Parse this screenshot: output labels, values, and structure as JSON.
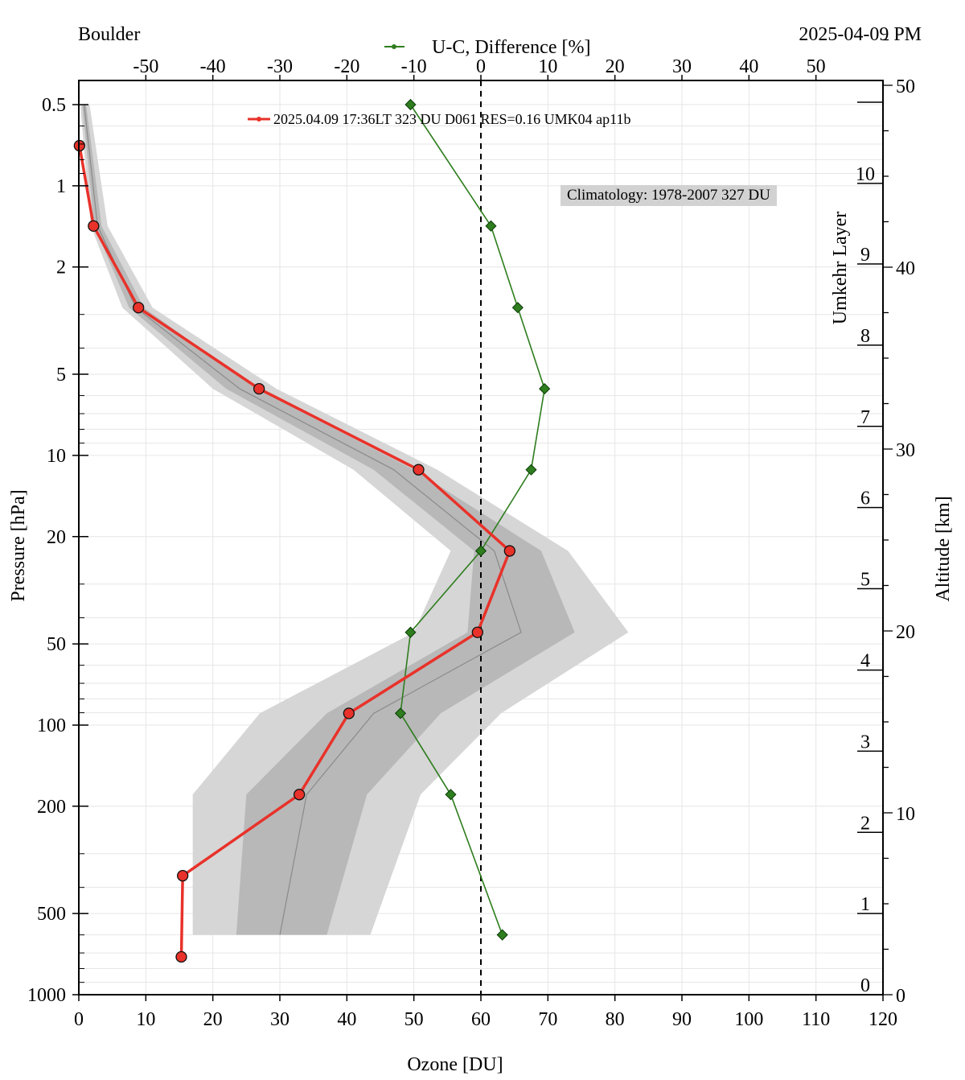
{
  "header": {
    "station": "Boulder",
    "date_label": "2025-04-09 PM"
  },
  "legend": {
    "observation": "2025.04.09 17:36LT  323 DU D061 RES=0.16 UMK04 ap11b",
    "difference": "U-C, Difference [%]",
    "climatology": "Climatology: 1978-2007  327 DU"
  },
  "colors": {
    "observation": "#e8322a",
    "difference": "#2e7d1e",
    "clim_outer": "#d6d6d6",
    "clim_inner": "#b8b8b8",
    "clim_mean": "#8a8a8a",
    "grid": "#e6e6e6"
  },
  "chart_data": {
    "type": "line",
    "xlabel": "Ozone [DU]",
    "ylabel": "Pressure [hPa]",
    "top_xlabel": "U-C, Difference [%]",
    "right_labels": [
      "Umkehr Layer",
      "Altitude [km]"
    ],
    "x_range": [
      0,
      120
    ],
    "x_ticks": [
      "0",
      "10",
      "20",
      "30",
      "40",
      "50",
      "60",
      "70",
      "80",
      "90",
      "100",
      "110",
      "120"
    ],
    "top_x_range": [
      -60,
      60
    ],
    "top_x_ticks": [
      "-50",
      "-40",
      "-30",
      "-20",
      "-10",
      "0",
      "10",
      "20",
      "30",
      "40",
      "50"
    ],
    "y_scale": "log",
    "y_range": [
      1000,
      0.5
    ],
    "y_ticks": [
      "0.5",
      "1",
      "2",
      "5",
      "10",
      "20",
      "50",
      "100",
      "200",
      "500",
      "1000"
    ],
    "altitude_ticks": [
      "0",
      "10",
      "20",
      "30",
      "40",
      "50"
    ],
    "umkehr_layers": [
      "0",
      "1",
      "2",
      "3",
      "4",
      "5",
      "6",
      "7",
      "8",
      "9",
      "10"
    ],
    "series": [
      {
        "name": "2025.04.09 17:36LT  323 DU D061 RES=0.16 UMK04 ap11b",
        "points": [
          {
            "p": 0.71,
            "x": 0.1
          },
          {
            "p": 1.41,
            "x": 2.2
          },
          {
            "p": 2.83,
            "x": 8.9
          },
          {
            "p": 5.66,
            "x": 26.9
          },
          {
            "p": 11.3,
            "x": 50.7
          },
          {
            "p": 22.6,
            "x": 64.3
          },
          {
            "p": 45.3,
            "x": 59.5
          },
          {
            "p": 90.5,
            "x": 40.3
          },
          {
            "p": 181,
            "x": 32.9
          },
          {
            "p": 362,
            "x": 15.5
          },
          {
            "p": 724,
            "x": 15.3
          }
        ]
      },
      {
        "name": "U-C, Difference [%]",
        "points": [
          {
            "p": 0.5,
            "d": -10.5
          },
          {
            "p": 1.41,
            "d": 1.5
          },
          {
            "p": 2.83,
            "d": 5.5
          },
          {
            "p": 5.66,
            "d": 9.5
          },
          {
            "p": 11.3,
            "d": 7.5
          },
          {
            "p": 22.6,
            "d": 0
          },
          {
            "p": 45.3,
            "d": -10.5
          },
          {
            "p": 90.5,
            "d": -12
          },
          {
            "p": 181,
            "d": -4.5
          },
          {
            "p": 600,
            "d": 3.2
          }
        ]
      }
    ],
    "climatology": {
      "name": "Climatology: 1978-2007  327 DU",
      "mean": [
        {
          "p": 0.5,
          "x": 0.8
        },
        {
          "p": 1.41,
          "x": 2.8
        },
        {
          "p": 2.83,
          "x": 8.5
        },
        {
          "p": 5.66,
          "x": 24
        },
        {
          "p": 11.3,
          "x": 47
        },
        {
          "p": 22.6,
          "x": 62
        },
        {
          "p": 45.3,
          "x": 66
        },
        {
          "p": 90.5,
          "x": 44
        },
        {
          "p": 181,
          "x": 34
        },
        {
          "p": 600,
          "x": 30
        }
      ],
      "inner_band": [
        {
          "p": 0.5,
          "lo": 0.5,
          "hi": 1.1
        },
        {
          "p": 1.41,
          "lo": 2.3,
          "hi": 3.4
        },
        {
          "p": 2.83,
          "lo": 7.5,
          "hi": 9.7
        },
        {
          "p": 5.66,
          "lo": 22,
          "hi": 26.5
        },
        {
          "p": 11.3,
          "lo": 44,
          "hi": 50
        },
        {
          "p": 22.6,
          "lo": 59,
          "hi": 69
        },
        {
          "p": 45.3,
          "lo": 58,
          "hi": 74
        },
        {
          "p": 90.5,
          "lo": 37,
          "hi": 54
        },
        {
          "p": 181,
          "lo": 25,
          "hi": 43
        },
        {
          "p": 600,
          "lo": 23.5,
          "hi": 37
        }
      ],
      "outer_band": [
        {
          "p": 0.5,
          "lo": 0.2,
          "hi": 1.6
        },
        {
          "p": 1.41,
          "lo": 1.8,
          "hi": 4.3
        },
        {
          "p": 2.83,
          "lo": 6.5,
          "hi": 11
        },
        {
          "p": 5.66,
          "lo": 20,
          "hi": 29.5
        },
        {
          "p": 11.3,
          "lo": 41,
          "hi": 53.5
        },
        {
          "p": 22.6,
          "lo": 55.5,
          "hi": 73
        },
        {
          "p": 45.3,
          "lo": 50,
          "hi": 82
        },
        {
          "p": 90.5,
          "lo": 27,
          "hi": 63
        },
        {
          "p": 181,
          "lo": 17,
          "hi": 51
        },
        {
          "p": 600,
          "lo": 17,
          "hi": 43.5
        }
      ]
    }
  }
}
